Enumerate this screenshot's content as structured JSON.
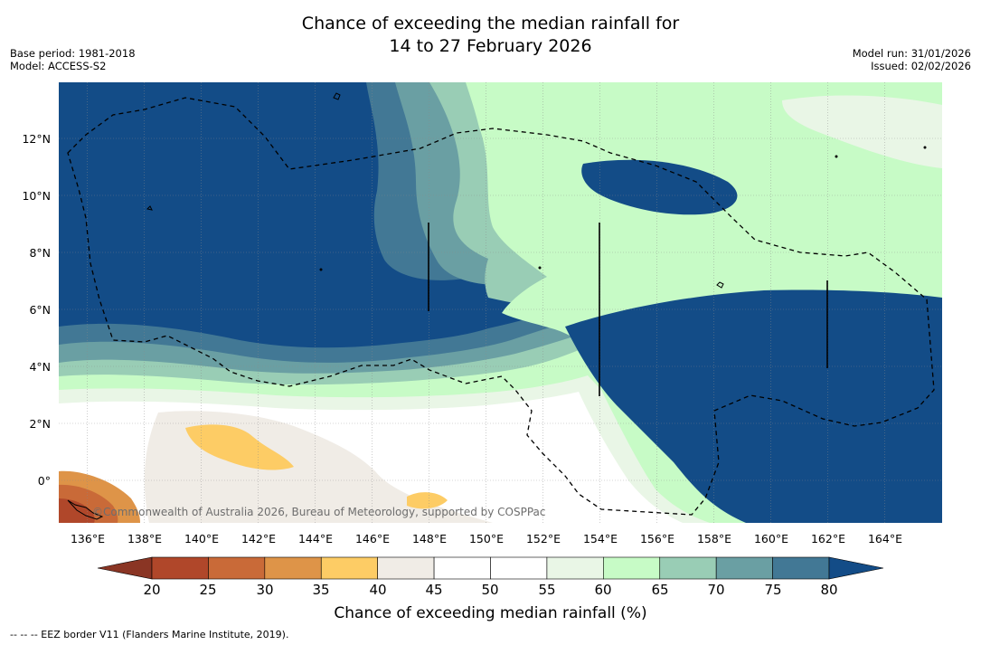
{
  "title": {
    "line1": "Chance of exceeding the median rainfall for",
    "line2": "14 to 27 February 2026"
  },
  "meta_left": {
    "base_period": "Base period: 1981-2018",
    "model": "Model: ACCESS-S2"
  },
  "meta_right": {
    "model_run": "Model run: 31/01/2026",
    "issued": "Issued: 02/02/2026"
  },
  "map": {
    "lat_labels": [
      "12°N",
      "10°N",
      "8°N",
      "6°N",
      "4°N",
      "2°N",
      "0°"
    ],
    "lon_labels": [
      "136°E",
      "138°E",
      "140°E",
      "142°E",
      "144°E",
      "146°E",
      "148°E",
      "150°E",
      "152°E",
      "154°E",
      "156°E",
      "158°E",
      "160°E",
      "162°E",
      "164°E"
    ],
    "copyright": "©Commonwealth of Australia 2026, Bureau of Meteorology, supported by COSPPac"
  },
  "colorbar": {
    "ticks": [
      "20",
      "25",
      "30",
      "35",
      "40",
      "45",
      "50",
      "55",
      "60",
      "65",
      "70",
      "75",
      "80"
    ],
    "colors": [
      "#b0472a",
      "#c96a38",
      "#de9448",
      "#fdcc65",
      "#f0ece6",
      "#ffffff",
      "#ffffff",
      "#e9f6e6",
      "#c7fbc6",
      "#99cdb5",
      "#6a9fa3",
      "#427895"
    ],
    "under_color": "#8a3524",
    "over_color": "#134c87",
    "label": "Chance of exceeding median rainfall (%)"
  },
  "legend_note": "--  --  -- EEZ border V11 (Flanders Marine Institute, 2019)."
}
